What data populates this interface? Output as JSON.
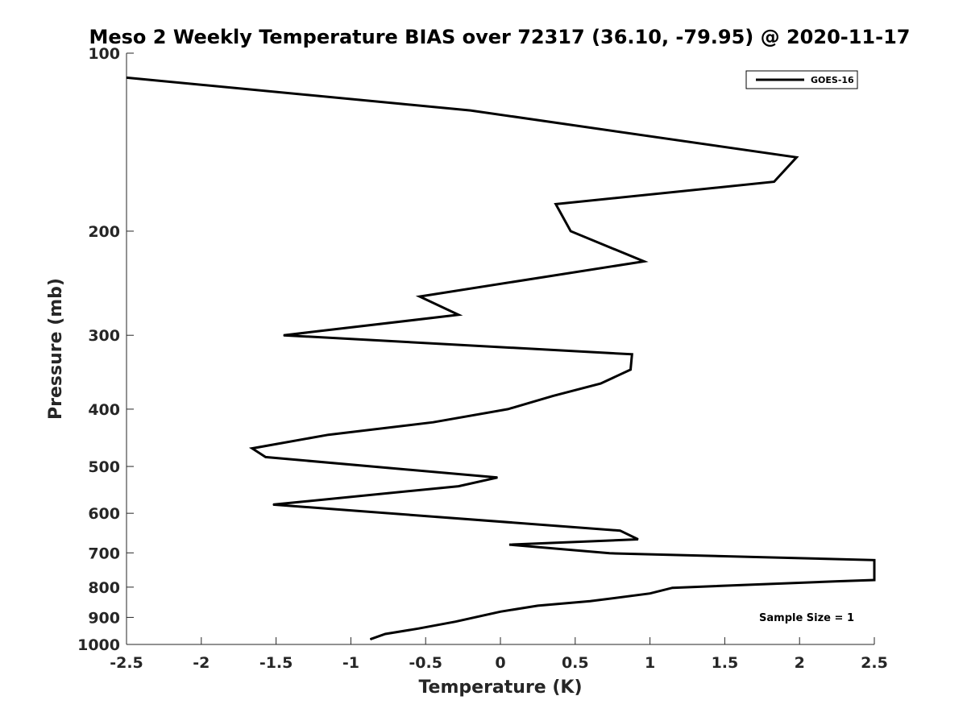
{
  "chart_data": {
    "type": "line",
    "title": "Meso 2 Weekly Temperature BIAS over 72317 (36.10, -79.95) @ 2020-11-17",
    "xlabel": "Temperature (K)",
    "ylabel": "Pressure (mb)",
    "xlim": [
      -2.5,
      2.5
    ],
    "ylim": [
      100,
      1000
    ],
    "y_scale": "log",
    "y_reversed": true,
    "x_ticks": [
      -2.5,
      -2,
      -1.5,
      -1,
      -0.5,
      0,
      0.5,
      1,
      1.5,
      2,
      2.5
    ],
    "x_tick_labels": [
      "-2.5",
      "-2",
      "-1.5",
      "-1",
      "-0.5",
      "0",
      "0.5",
      "1",
      "1.5",
      "2",
      "2.5"
    ],
    "y_ticks": [
      100,
      200,
      300,
      400,
      500,
      600,
      700,
      800,
      900,
      1000
    ],
    "y_tick_labels": [
      "100",
      "200",
      "300",
      "400",
      "500",
      "600",
      "700",
      "800",
      "900",
      "1000"
    ],
    "grid": false,
    "legend_position": "top-right",
    "annotation": "Sample Size = 1",
    "color": "#000000",
    "series": [
      {
        "name": "GOES-16",
        "points": [
          {
            "x": -2.5,
            "y": 110
          },
          {
            "x": -0.2,
            "y": 125
          },
          {
            "x": 1.98,
            "y": 150
          },
          {
            "x": 1.83,
            "y": 165
          },
          {
            "x": 0.37,
            "y": 180
          },
          {
            "x": 0.47,
            "y": 200
          },
          {
            "x": 0.96,
            "y": 225
          },
          {
            "x": 0.25,
            "y": 240
          },
          {
            "x": -0.54,
            "y": 258
          },
          {
            "x": -0.28,
            "y": 277
          },
          {
            "x": -1.45,
            "y": 300
          },
          {
            "x": 0.88,
            "y": 323
          },
          {
            "x": 0.87,
            "y": 343
          },
          {
            "x": 0.67,
            "y": 362
          },
          {
            "x": 0.35,
            "y": 380
          },
          {
            "x": 0.05,
            "y": 400
          },
          {
            "x": -0.45,
            "y": 421
          },
          {
            "x": -1.15,
            "y": 442
          },
          {
            "x": -1.66,
            "y": 466
          },
          {
            "x": -1.57,
            "y": 482
          },
          {
            "x": -0.02,
            "y": 522
          },
          {
            "x": -0.28,
            "y": 540
          },
          {
            "x": -1.52,
            "y": 580
          },
          {
            "x": 0.8,
            "y": 642
          },
          {
            "x": 0.92,
            "y": 664
          },
          {
            "x": 0.06,
            "y": 678
          },
          {
            "x": 0.73,
            "y": 701
          },
          {
            "x": 2.5,
            "y": 720
          },
          {
            "x": 2.5,
            "y": 778
          },
          {
            "x": 2.25,
            "y": 782
          },
          {
            "x": 1.15,
            "y": 802
          },
          {
            "x": 1.0,
            "y": 820
          },
          {
            "x": 0.6,
            "y": 845
          },
          {
            "x": 0.25,
            "y": 860
          },
          {
            "x": 0.0,
            "y": 880
          },
          {
            "x": -0.3,
            "y": 915
          },
          {
            "x": -0.55,
            "y": 940
          },
          {
            "x": -0.77,
            "y": 960
          },
          {
            "x": -0.87,
            "y": 980
          }
        ]
      }
    ]
  }
}
